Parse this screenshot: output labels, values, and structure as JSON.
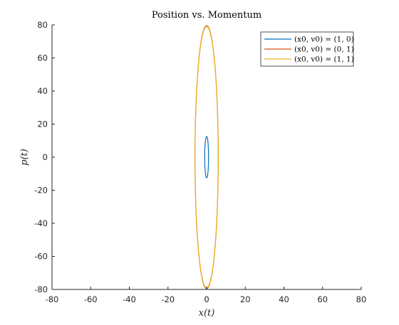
{
  "chart_data": {
    "type": "line",
    "title": "Position vs. Momentum",
    "xlabel": "x(t)",
    "ylabel": "p(t)",
    "xlim": [
      -80,
      80
    ],
    "ylim": [
      -80,
      80
    ],
    "xticks": [
      -80,
      -60,
      -40,
      -20,
      0,
      20,
      40,
      60,
      80
    ],
    "yticks": [
      -80,
      -60,
      -40,
      -20,
      0,
      20,
      40,
      60,
      80
    ],
    "xtick_labels": [
      "-80",
      "-60",
      "-40",
      "-20",
      "0",
      "20",
      "40",
      "60",
      "80"
    ],
    "ytick_labels": [
      "-80",
      "-60",
      "-40",
      "-20",
      "0",
      "20",
      "40",
      "60",
      "80"
    ],
    "grid": false,
    "legend_position": "top-right",
    "series": [
      {
        "name": "(x0, v0) = (1, 0)",
        "color": "#0072BD",
        "x_amplitude": 1,
        "p_amplitude": 12.5
      },
      {
        "name": "(x0, v0) = (0, 1)",
        "color": "#D95319",
        "x_amplitude": 6,
        "p_amplitude": 79.5
      },
      {
        "name": "(x0, v0) = (1, 1)",
        "color": "#EDB120",
        "x_amplitude": 6,
        "p_amplitude": 79
      }
    ]
  }
}
